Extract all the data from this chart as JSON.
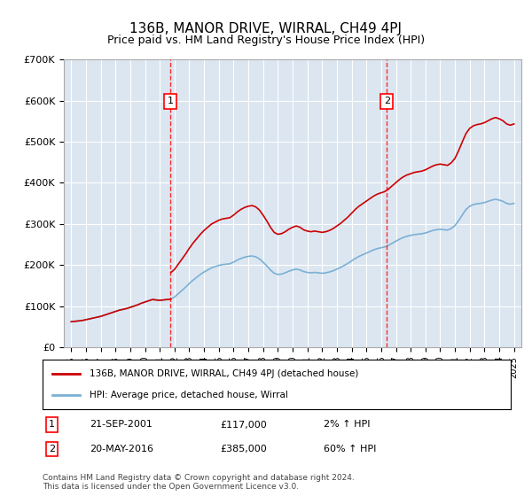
{
  "title": "136B, MANOR DRIVE, WIRRAL, CH49 4PJ",
  "subtitle": "Price paid vs. HM Land Registry's House Price Index (HPI)",
  "legend_property": "136B, MANOR DRIVE, WIRRAL, CH49 4PJ (detached house)",
  "legend_hpi": "HPI: Average price, detached house, Wirral",
  "transaction1_label": "1",
  "transaction1_date": "21-SEP-2001",
  "transaction1_price": "£117,000",
  "transaction1_hpi": "2% ↑ HPI",
  "transaction1_year": 2001.72,
  "transaction1_value": 117000,
  "transaction2_label": "2",
  "transaction2_date": "20-MAY-2016",
  "transaction2_price": "£385,000",
  "transaction2_hpi": "60% ↑ HPI",
  "transaction2_year": 2016.38,
  "transaction2_value": 385000,
  "ylim": [
    0,
    700000
  ],
  "yticks": [
    0,
    100000,
    200000,
    300000,
    400000,
    500000,
    600000,
    700000
  ],
  "ytick_labels": [
    "£0",
    "£100K",
    "£200K",
    "£300K",
    "£400K",
    "£500K",
    "£600K",
    "£700K"
  ],
  "xlim_start": 1994.5,
  "xlim_end": 2025.5,
  "background_color": "#dce6f1",
  "plot_bg_color": "#dce6f1",
  "line_color_property": "#cc0000",
  "line_color_hpi": "#7ab0d4",
  "copyright_text": "Contains HM Land Registry data © Crown copyright and database right 2024.\nThis data is licensed under the Open Government Licence v3.0.",
  "hpi_years": [
    1995,
    1995.25,
    1995.5,
    1995.75,
    1996,
    1996.25,
    1996.5,
    1996.75,
    1997,
    1997.25,
    1997.5,
    1997.75,
    1998,
    1998.25,
    1998.5,
    1998.75,
    1999,
    1999.25,
    1999.5,
    1999.75,
    2000,
    2000.25,
    2000.5,
    2000.75,
    2001,
    2001.25,
    2001.5,
    2001.75,
    2002,
    2002.25,
    2002.5,
    2002.75,
    2003,
    2003.25,
    2003.5,
    2003.75,
    2004,
    2004.25,
    2004.5,
    2004.75,
    2005,
    2005.25,
    2005.5,
    2005.75,
    2006,
    2006.25,
    2006.5,
    2006.75,
    2007,
    2007.25,
    2007.5,
    2007.75,
    2008,
    2008.25,
    2008.5,
    2008.75,
    2009,
    2009.25,
    2009.5,
    2009.75,
    2010,
    2010.25,
    2010.5,
    2010.75,
    2011,
    2011.25,
    2011.5,
    2011.75,
    2012,
    2012.25,
    2012.5,
    2012.75,
    2013,
    2013.25,
    2013.5,
    2013.75,
    2014,
    2014.25,
    2014.5,
    2014.75,
    2015,
    2015.25,
    2015.5,
    2015.75,
    2016,
    2016.25,
    2016.5,
    2016.75,
    2017,
    2017.25,
    2017.5,
    2017.75,
    2018,
    2018.25,
    2018.5,
    2018.75,
    2019,
    2019.25,
    2019.5,
    2019.75,
    2020,
    2020.25,
    2020.5,
    2020.75,
    2021,
    2021.25,
    2021.5,
    2021.75,
    2022,
    2022.25,
    2022.5,
    2022.75,
    2023,
    2023.25,
    2023.5,
    2023.75,
    2024,
    2024.25,
    2024.5,
    2024.75,
    2025
  ],
  "hpi_values": [
    62000,
    63000,
    64000,
    65000,
    67000,
    69000,
    71000,
    73000,
    75000,
    78000,
    81000,
    84000,
    87000,
    90000,
    92000,
    94000,
    97000,
    100000,
    103000,
    107000,
    110000,
    113000,
    116000,
    115000,
    114000,
    115000,
    116000,
    117000,
    122000,
    130000,
    138000,
    146000,
    155000,
    163000,
    170000,
    177000,
    183000,
    188000,
    193000,
    196000,
    199000,
    201000,
    202000,
    203000,
    207000,
    212000,
    216000,
    219000,
    221000,
    222000,
    220000,
    215000,
    207000,
    198000,
    188000,
    180000,
    177000,
    178000,
    181000,
    185000,
    188000,
    190000,
    188000,
    184000,
    182000,
    181000,
    182000,
    181000,
    180000,
    181000,
    183000,
    186000,
    190000,
    194000,
    199000,
    204000,
    210000,
    216000,
    221000,
    225000,
    229000,
    233000,
    237000,
    240000,
    242000,
    244000,
    248000,
    253000,
    258000,
    263000,
    267000,
    270000,
    272000,
    274000,
    275000,
    276000,
    278000,
    281000,
    284000,
    286000,
    287000,
    286000,
    285000,
    289000,
    296000,
    308000,
    322000,
    335000,
    343000,
    347000,
    349000,
    350000,
    352000,
    355000,
    358000,
    360000,
    358000,
    355000,
    350000,
    348000,
    350000
  ]
}
